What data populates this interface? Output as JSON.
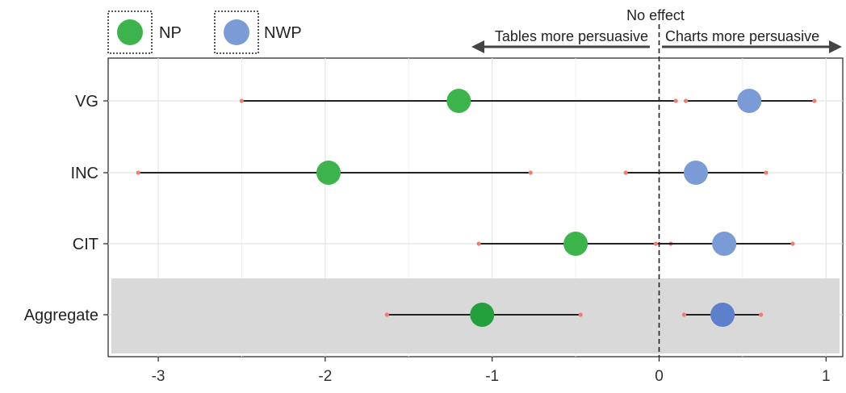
{
  "chart_data": {
    "type": "dot-interval",
    "title": "",
    "xlabel": "",
    "ylabel": "",
    "xlim": [
      -3.3,
      1.1
    ],
    "x_ticks": [
      -3,
      -2,
      -1,
      0,
      1
    ],
    "x_tick_labels": [
      "-3",
      "-2",
      "-1",
      "0",
      "1"
    ],
    "grid": true,
    "legend": {
      "position": "top-left",
      "items": [
        {
          "name": "NP",
          "color": "#3cb44b"
        },
        {
          "name": "NWP",
          "color": "#7b9bd6"
        }
      ]
    },
    "categories": [
      "VG",
      "INC",
      "CIT",
      "Aggregate"
    ],
    "highlight_category": "Aggregate",
    "reference_line": {
      "x": 0,
      "label": "No effect",
      "style": "dashed"
    },
    "annotations": [
      {
        "text": "Tables more persuasive",
        "direction": "left"
      },
      {
        "text": "Charts more persuasive",
        "direction": "right"
      }
    ],
    "series": [
      {
        "name": "NP",
        "color": "#3cb44b",
        "aggregate_color": "#23a03c",
        "values": [
          {
            "category": "VG",
            "estimate": -1.2,
            "low": -2.5,
            "high": 0.1
          },
          {
            "category": "INC",
            "estimate": -1.98,
            "low": -3.12,
            "high": -0.77
          },
          {
            "category": "CIT",
            "estimate": -0.5,
            "low": -1.08,
            "high": 0.07
          },
          {
            "category": "Aggregate",
            "estimate": -1.06,
            "low": -1.63,
            "high": -0.47
          }
        ]
      },
      {
        "name": "NWP",
        "color": "#7b9bd6",
        "aggregate_color": "#5c80c9",
        "values": [
          {
            "category": "VG",
            "estimate": 0.54,
            "low": 0.16,
            "high": 0.93
          },
          {
            "category": "INC",
            "estimate": 0.22,
            "low": -0.2,
            "high": 0.64
          },
          {
            "category": "CIT",
            "estimate": 0.39,
            "low": -0.02,
            "high": 0.8
          },
          {
            "category": "Aggregate",
            "estimate": 0.38,
            "low": 0.15,
            "high": 0.61
          }
        ]
      }
    ]
  }
}
